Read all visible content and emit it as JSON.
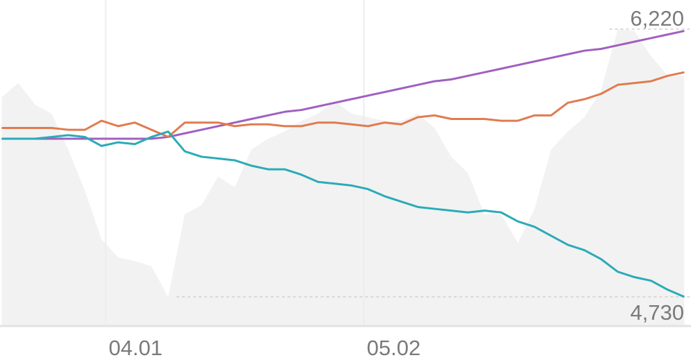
{
  "chart_data": {
    "type": "line",
    "x": [
      -12.5,
      -10.5,
      -8.5,
      -6.5,
      -4.5,
      -2.5,
      -0.5,
      1.5,
      3.5,
      5.5,
      7.5,
      9.5,
      11.5,
      13.5,
      15.5,
      17.5,
      19.5,
      21.5,
      23.5,
      25.5,
      27.5,
      29.5,
      31.5,
      33.5,
      35.5,
      37.5,
      39.5,
      41.5,
      43.5,
      45.5,
      47.5,
      49.5,
      51.5,
      53.5,
      55.5,
      57.5,
      59.5,
      61.5,
      63.5,
      65.5,
      67.5,
      69.5
    ],
    "xlim": [
      -12.7,
      70.3
    ],
    "xticks": [
      {
        "value": 0,
        "label": "04.01"
      },
      {
        "value": 31,
        "label": "05.02"
      }
    ],
    "ylim": [
      4568,
      6382
    ],
    "grid": true,
    "series": [
      {
        "type": "area",
        "color": "#f2f2f2",
        "values": [
          5840,
          5920,
          5800,
          5750,
          5550,
          5320,
          5050,
          4950,
          4930,
          4900,
          4730,
          5190,
          5240,
          5400,
          5340,
          5550,
          5610,
          5650,
          5710,
          5750,
          5820,
          5750,
          5730,
          5710,
          5710,
          5750,
          5670,
          5510,
          5420,
          5190,
          5190,
          5030,
          5220,
          5550,
          5650,
          5730,
          5880,
          6220,
          6210,
          6070,
          5960,
          5960
        ]
      },
      {
        "type": "line",
        "color": "#a05fc0",
        "values": [
          5610,
          5610,
          5610,
          5610,
          5610,
          5610,
          5610,
          5610,
          5610,
          5610,
          5620,
          5640,
          5660,
          5680,
          5700,
          5720,
          5740,
          5760,
          5770,
          5790,
          5810,
          5830,
          5850,
          5870,
          5890,
          5910,
          5930,
          5940,
          5960,
          5980,
          6000,
          6020,
          6040,
          6060,
          6080,
          6100,
          6110,
          6130,
          6150,
          6170,
          6190,
          6210
        ]
      },
      {
        "type": "line",
        "color": "#e07b4f",
        "values": [
          5670,
          5670,
          5670,
          5670,
          5660,
          5660,
          5710,
          5680,
          5700,
          5660,
          5620,
          5700,
          5700,
          5700,
          5680,
          5690,
          5690,
          5680,
          5680,
          5700,
          5700,
          5690,
          5680,
          5700,
          5690,
          5730,
          5740,
          5720,
          5720,
          5720,
          5710,
          5710,
          5740,
          5740,
          5810,
          5830,
          5860,
          5910,
          5920,
          5930,
          5960,
          5980
        ]
      },
      {
        "type": "line",
        "color": "#2aabb8",
        "values": [
          5610,
          5610,
          5610,
          5620,
          5630,
          5620,
          5570,
          5590,
          5580,
          5620,
          5650,
          5540,
          5510,
          5500,
          5490,
          5460,
          5440,
          5440,
          5410,
          5370,
          5360,
          5350,
          5330,
          5290,
          5260,
          5230,
          5220,
          5210,
          5200,
          5210,
          5200,
          5150,
          5120,
          5070,
          5020,
          4990,
          4940,
          4870,
          4840,
          4820,
          4770,
          4730
        ]
      }
    ],
    "annotations": [
      {
        "label": "6,220",
        "value": 6220,
        "position": "above"
      },
      {
        "label": "4,730",
        "value": 4730,
        "position": "below"
      }
    ]
  }
}
